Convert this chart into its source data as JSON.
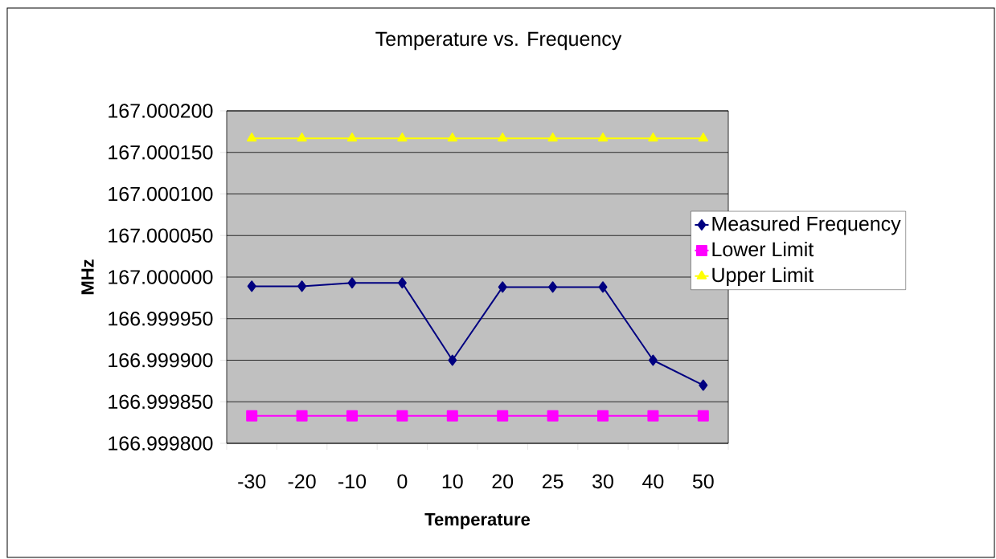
{
  "chart_data": {
    "type": "line",
    "title": "Temperature vs. Frequency",
    "xlabel": "Temperature",
    "ylabel": "MHz",
    "categories": [
      "-30",
      "-20",
      "-10",
      "0",
      "10",
      "20",
      "25",
      "30",
      "40",
      "50"
    ],
    "series": [
      {
        "name": "Measured Frequency",
        "color": "#000080",
        "marker": "diamond",
        "values": [
          166.999989,
          166.999989,
          166.999993,
          166.999993,
          166.9999,
          166.999988,
          166.999988,
          166.999988,
          166.9999,
          166.99987
        ]
      },
      {
        "name": "Lower Limit",
        "color": "#ff00ff",
        "marker": "square",
        "values": [
          166.999833,
          166.999833,
          166.999833,
          166.999833,
          166.999833,
          166.999833,
          166.999833,
          166.999833,
          166.999833,
          166.999833
        ]
      },
      {
        "name": "Upper Limit",
        "color": "#ffff00",
        "marker": "triangle",
        "values": [
          167.000167,
          167.000167,
          167.000167,
          167.000167,
          167.000167,
          167.000167,
          167.000167,
          167.000167,
          167.000167,
          167.000167
        ]
      }
    ],
    "ylim": [
      166.9998,
      167.0002
    ],
    "yticks": [
      {
        "value": 166.9998,
        "label": "166.999800"
      },
      {
        "value": 166.99985,
        "label": "166.999850"
      },
      {
        "value": 166.9999,
        "label": "166.999900"
      },
      {
        "value": 166.99995,
        "label": "166.999950"
      },
      {
        "value": 167.0,
        "label": "167.000000"
      },
      {
        "value": 167.00005,
        "label": "167.000050"
      },
      {
        "value": 167.0001,
        "label": "167.000100"
      },
      {
        "value": 167.00015,
        "label": "167.000150"
      },
      {
        "value": 167.0002,
        "label": "167.000200"
      }
    ],
    "grid": "y",
    "legend": "right"
  }
}
